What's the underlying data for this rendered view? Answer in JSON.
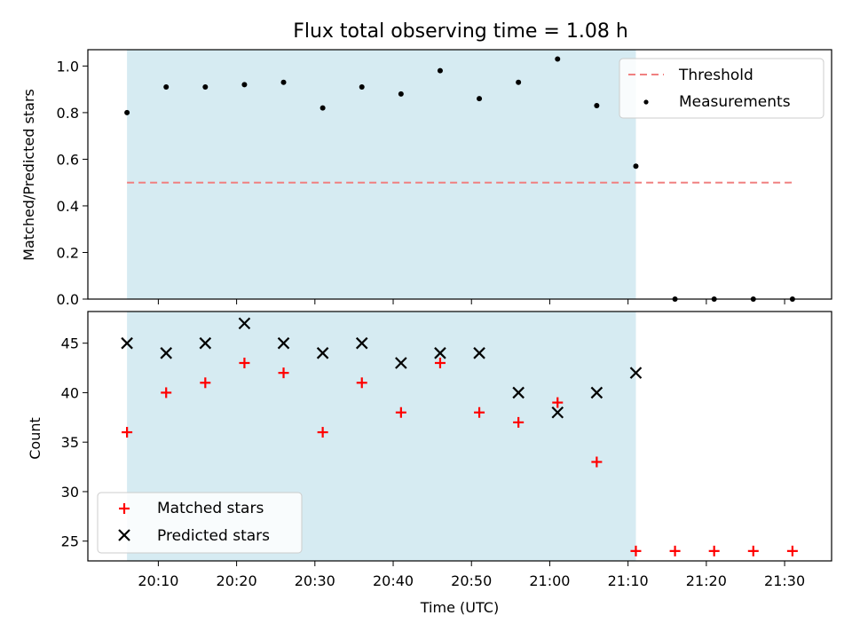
{
  "chart_data": [
    {
      "type": "scatter",
      "title": "Flux total observing time = 1.08 h",
      "xlabel": "",
      "ylabel": "Matched/Predicted stars",
      "ylim": [
        0,
        1.07
      ],
      "yticks": [
        "0.0",
        "0.2",
        "0.4",
        "0.6",
        "0.8",
        "1.0"
      ],
      "shaded_range": [
        "20:06",
        "21:11"
      ],
      "threshold": {
        "name": "Threshold",
        "value": 0.5,
        "x_start": "20:06",
        "x_end": "21:31",
        "color": "#f08080"
      },
      "series": [
        {
          "name": "Measurements",
          "x": [
            "20:06",
            "20:11",
            "20:16",
            "20:21",
            "20:26",
            "20:31",
            "20:36",
            "20:41",
            "20:46",
            "20:51",
            "20:56",
            "21:01",
            "21:06",
            "21:11",
            "21:16",
            "21:21",
            "21:26",
            "21:31"
          ],
          "values": [
            0.8,
            0.91,
            0.91,
            0.92,
            0.93,
            0.82,
            0.91,
            0.88,
            0.98,
            0.86,
            0.93,
            1.03,
            0.83,
            0.57,
            0.0,
            0.0,
            0.0,
            0.0
          ]
        }
      ],
      "legend": [
        "Threshold",
        "Measurements"
      ],
      "legend_position": "top-right"
    },
    {
      "type": "scatter",
      "xlabel": "Time (UTC)",
      "ylabel": "Count",
      "ylim": [
        23,
        48.2
      ],
      "yticks": [
        "25",
        "30",
        "35",
        "40",
        "45"
      ],
      "xlim": [
        "20:01",
        "21:36"
      ],
      "xticks": [
        "20:10",
        "20:20",
        "20:30",
        "20:40",
        "20:50",
        "21:00",
        "21:10",
        "21:20",
        "21:30"
      ],
      "shaded_range": [
        "20:06",
        "21:11"
      ],
      "series": [
        {
          "name": "Matched stars",
          "marker": "plus",
          "color": "#ff0000",
          "x": [
            "20:06",
            "20:11",
            "20:16",
            "20:21",
            "20:26",
            "20:31",
            "20:36",
            "20:41",
            "20:46",
            "20:51",
            "20:56",
            "21:01",
            "21:06",
            "21:11",
            "21:16",
            "21:21",
            "21:26",
            "21:31"
          ],
          "values": [
            36,
            40,
            41,
            43,
            42,
            36,
            41,
            38,
            43,
            38,
            37,
            39,
            33,
            24,
            24,
            24,
            24,
            24
          ]
        },
        {
          "name": "Predicted stars",
          "marker": "x",
          "color": "#000000",
          "x": [
            "20:06",
            "20:11",
            "20:16",
            "20:21",
            "20:26",
            "20:31",
            "20:36",
            "20:41",
            "20:46",
            "20:51",
            "20:56",
            "21:01",
            "21:06",
            "21:11"
          ],
          "values": [
            45,
            44,
            45,
            47,
            45,
            44,
            45,
            43,
            44,
            44,
            40,
            38,
            40,
            42
          ]
        }
      ],
      "legend": [
        "Matched stars",
        "Predicted stars"
      ],
      "legend_position": "bottom-left"
    }
  ],
  "colors": {
    "shade": "#add8e6",
    "threshold": "#f08080",
    "matched": "#ff0000",
    "predicted": "#000000",
    "measurement": "#000000"
  }
}
